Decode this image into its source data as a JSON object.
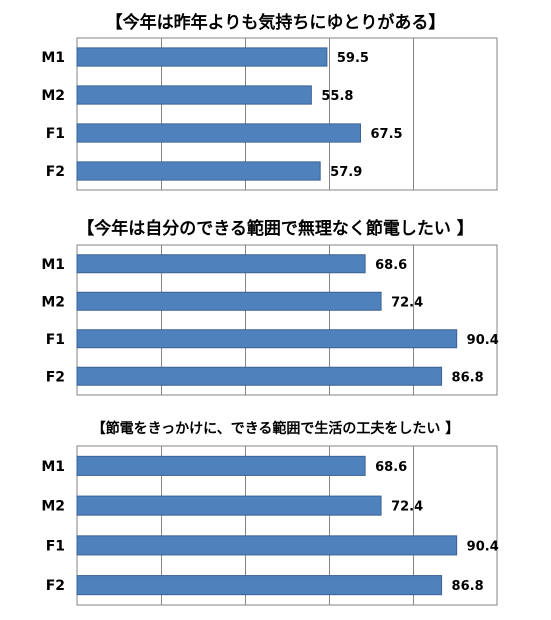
{
  "chart_data": [
    {
      "type": "bar",
      "orientation": "horizontal",
      "title": "【今年は昨年よりも気持ちにゆとりがある】",
      "categories": [
        "M1",
        "M2",
        "F1",
        "F2"
      ],
      "values": [
        59.5,
        55.8,
        67.5,
        57.9
      ],
      "value_labels": [
        "59.5",
        "55.8",
        "67.5",
        "57.9"
      ],
      "xlim": [
        0,
        100
      ],
      "grid": true,
      "color": "#4f81bd"
    },
    {
      "type": "bar",
      "orientation": "horizontal",
      "title": "【今年は自分のできる範囲で無理なく節電したい 】",
      "categories": [
        "M1",
        "M2",
        "F1",
        "F2"
      ],
      "values": [
        68.6,
        72.4,
        90.4,
        86.8
      ],
      "value_labels": [
        "68.6",
        "72.4",
        "90.4",
        "86.8"
      ],
      "xlim": [
        0,
        100
      ],
      "grid": true,
      "color": "#4f81bd"
    },
    {
      "type": "bar",
      "orientation": "horizontal",
      "title": "【節電をきっかけに、できる範囲で生活の工夫をしたい 】",
      "categories": [
        "M1",
        "M2",
        "F1",
        "F2"
      ],
      "values": [
        68.6,
        72.4,
        90.4,
        86.8
      ],
      "value_labels": [
        "68.6",
        "72.4",
        "90.4",
        "86.8"
      ],
      "xlim": [
        0,
        100
      ],
      "grid": true,
      "color": "#4f81bd"
    }
  ]
}
